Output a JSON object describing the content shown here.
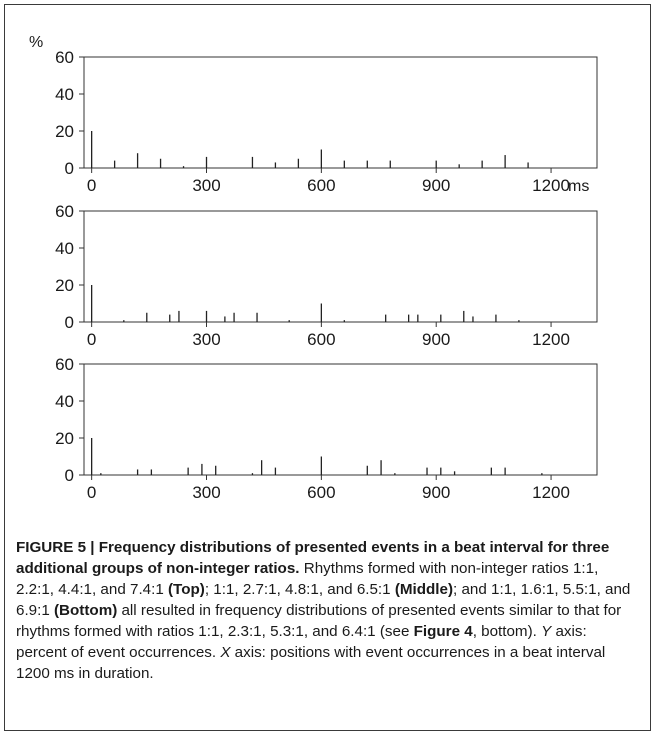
{
  "chart_data": [
    {
      "type": "bar",
      "y_unit": "%",
      "x_unit": "ms",
      "xlim": [
        -20,
        1320
      ],
      "ylim": [
        0,
        60
      ],
      "xticks": [
        "0",
        "300",
        "600",
        "900",
        "1200"
      ],
      "yticks": [
        "0",
        "20",
        "40",
        "60"
      ],
      "x": [
        0,
        60,
        120,
        180,
        240,
        300,
        420,
        480,
        540,
        600,
        660,
        720,
        780,
        900,
        960,
        1020,
        1080,
        1140
      ],
      "values": [
        20,
        4,
        8,
        5,
        1,
        6,
        6,
        3,
        5,
        10,
        4,
        4,
        4,
        4,
        2,
        4,
        7,
        3
      ]
    },
    {
      "type": "bar",
      "xlim": [
        -20,
        1320
      ],
      "ylim": [
        0,
        60
      ],
      "xticks": [
        "0",
        "300",
        "600",
        "900",
        "1200"
      ],
      "yticks": [
        "0",
        "20",
        "40",
        "60"
      ],
      "x": [
        0,
        84,
        144,
        204,
        228,
        300,
        348,
        372,
        432,
        516,
        600,
        660,
        768,
        828,
        852,
        912,
        972,
        996,
        1056,
        1116
      ],
      "values": [
        20,
        1,
        5,
        4,
        6,
        6,
        3,
        5,
        5,
        1,
        10,
        1,
        4,
        4,
        4,
        4,
        6,
        3,
        4,
        1
      ]
    },
    {
      "type": "bar",
      "xlim": [
        -20,
        1320
      ],
      "ylim": [
        0,
        60
      ],
      "xticks": [
        "0",
        "300",
        "600",
        "900",
        "1200"
      ],
      "yticks": [
        "0",
        "20",
        "40",
        "60"
      ],
      "x": [
        0,
        24,
        120,
        156,
        252,
        288,
        324,
        420,
        444,
        480,
        600,
        720,
        756,
        792,
        876,
        912,
        948,
        1044,
        1080,
        1176
      ],
      "values": [
        20,
        1,
        3,
        3,
        4,
        6,
        5,
        1,
        8,
        4,
        10,
        5,
        8,
        1,
        4,
        4,
        2,
        4,
        4,
        1
      ]
    }
  ],
  "caption": {
    "label": "FIGURE 5 | Frequency distributions of presented events in a beat interval for three additional groups of non-integer ratios.",
    "text1": " Rhythms formed with non-integer ratios 1:1, 2.2:1, 4.4:1, and 7.4:1 ",
    "top": "(Top)",
    "text2": "; 1:1, 2.7:1, 4.8:1, and 6.5:1 ",
    "middle": "(Middle)",
    "text3": "; and 1:1, 1.6:1, 5.5:1, and 6.9:1 ",
    "bottom": "(Bottom)",
    "text4": " all resulted in frequency distributions of presented events similar to that for rhythms formed with ratios 1:1, 2.3:1, 5.3:1, and 6.4:1 (see ",
    "figref": "Figure 4",
    "text5": ", bottom). ",
    "yaxis_letter": "Y",
    "text6": " axis: percent of event occurrences. ",
    "xaxis_letter": "X",
    "text7": " axis: positions with event occurrences in a beat interval 1200 ms in duration."
  }
}
